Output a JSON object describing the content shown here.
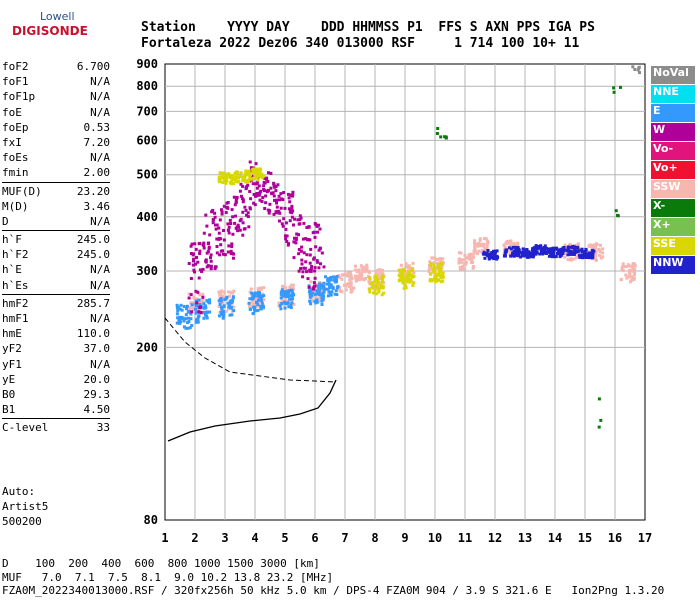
{
  "logo": {
    "top": "Lowell",
    "bottom": "DIGISONDE"
  },
  "header": {
    "line1": "Station    YYYY DAY    DDD HHMMSS P1  FFS S AXN PPS IGA PS",
    "line2": "Fortaleza 2022 Dez06 340 013000 RSF     1 714 100 10+ 11"
  },
  "params": [
    {
      "name": "foF2",
      "value": "6.700"
    },
    {
      "name": "foF1",
      "value": "N/A"
    },
    {
      "name": "foF1p",
      "value": "N/A"
    },
    {
      "name": "foE",
      "value": "N/A"
    },
    {
      "name": "foEp",
      "value": "0.53"
    },
    {
      "name": "fxI",
      "value": "7.20"
    },
    {
      "name": "foEs",
      "value": "N/A"
    },
    {
      "name": "fmin",
      "value": "2.00"
    },
    {
      "name": "MUF(D)",
      "value": "23.20"
    },
    {
      "name": "M(D)",
      "value": "3.46"
    },
    {
      "name": "D",
      "value": "N/A"
    },
    {
      "name": "h`F",
      "value": "245.0"
    },
    {
      "name": "h`F2",
      "value": "245.0"
    },
    {
      "name": "h`E",
      "value": "N/A"
    },
    {
      "name": "h`Es",
      "value": "N/A"
    },
    {
      "name": "hmF2",
      "value": "285.7"
    },
    {
      "name": "hmF1",
      "value": "N/A"
    },
    {
      "name": "hmE",
      "value": "110.0"
    },
    {
      "name": "yF2",
      "value": "37.0"
    },
    {
      "name": "yF1",
      "value": "N/A"
    },
    {
      "name": "yE",
      "value": "20.0"
    },
    {
      "name": "B0",
      "value": "29.3"
    },
    {
      "name": "B1",
      "value": "4.50"
    },
    {
      "name": "C-level",
      "value": "33"
    }
  ],
  "auto": {
    "line1": "Auto:",
    "line2": "Artist5",
    "line3": "500200"
  },
  "footer": {
    "line1": "D    100  200  400  600  800 1000 1500 3000 [km]",
    "line2": "MUF   7.0  7.1  7.5  8.1  9.0 10.2 13.8 23.2 [MHz]",
    "line3": "FZA0M_2022340013000.RSF / 320fx256h 50 kHz 5.0 km / DPS-4 FZA0M 904 / 3.9 S 321.6 E   Ion2Png 1.3.20"
  },
  "legend": [
    {
      "label": "NoVal",
      "color": "#8c8c8c"
    },
    {
      "label": "NNE",
      "color": "#00e0f0"
    },
    {
      "label": "E",
      "color": "#3399ff"
    },
    {
      "label": "W",
      "color": "#b0009a"
    },
    {
      "label": "Vo-",
      "color": "#e0147c"
    },
    {
      "label": "Vo+",
      "color": "#f01030"
    },
    {
      "label": "SSW",
      "color": "#f7b6b0"
    },
    {
      "label": "X-",
      "color": "#0a7a0a"
    },
    {
      "label": "X+",
      "color": "#78c050"
    },
    {
      "label": "SSE",
      "color": "#d8d800"
    },
    {
      "label": "NNW",
      "color": "#2222cc"
    }
  ],
  "chart_data": {
    "type": "scatter",
    "title": "",
    "xlabel": "",
    "ylabel": "",
    "xlim": [
      1,
      17
    ],
    "ylim": [
      80,
      900
    ],
    "y_scale": "log",
    "x_ticks": [
      1,
      2,
      3,
      4,
      5,
      6,
      7,
      8,
      9,
      10,
      11,
      12,
      13,
      14,
      15,
      16,
      17
    ],
    "y_ticks": [
      80,
      200,
      300,
      400,
      500,
      600,
      700,
      800,
      900
    ],
    "grid": true,
    "series": [
      {
        "name": "SSW",
        "points": [
          [
            2.0,
            255
          ],
          [
            3.0,
            258
          ],
          [
            4.0,
            262
          ],
          [
            5.0,
            266
          ],
          [
            6.0,
            272
          ],
          [
            7.0,
            285
          ],
          [
            7.5,
            300
          ],
          [
            8.0,
            290
          ],
          [
            9.0,
            300
          ],
          [
            10.0,
            310
          ],
          [
            11.0,
            320
          ],
          [
            11.5,
            345
          ],
          [
            12.5,
            340
          ],
          [
            14.5,
            335
          ],
          [
            15.3,
            335
          ],
          [
            16.4,
            300
          ]
        ]
      },
      {
        "name": "E",
        "points": [
          [
            1.6,
            238
          ],
          [
            2.2,
            245
          ],
          [
            3.0,
            250
          ],
          [
            4.0,
            255
          ],
          [
            5.0,
            260
          ],
          [
            6.0,
            268
          ],
          [
            6.5,
            280
          ]
        ]
      },
      {
        "name": "W",
        "points": [
          [
            2.0,
            300
          ],
          [
            2.5,
            360
          ],
          [
            3.0,
            380
          ],
          [
            3.5,
            420
          ],
          [
            4.0,
            480
          ],
          [
            4.5,
            450
          ],
          [
            5.0,
            400
          ],
          [
            5.5,
            350
          ],
          [
            6.0,
            330
          ]
        ]
      },
      {
        "name": "NNW",
        "points": [
          [
            11.8,
            330
          ],
          [
            12.5,
            335
          ],
          [
            13.0,
            333
          ],
          [
            13.5,
            338
          ],
          [
            14.0,
            334
          ],
          [
            14.5,
            337
          ],
          [
            15.0,
            332
          ]
        ]
      },
      {
        "name": "SSE",
        "points": [
          [
            3.0,
            495
          ],
          [
            3.5,
            500
          ],
          [
            4.0,
            505
          ],
          [
            8.0,
            280
          ],
          [
            9.0,
            290
          ],
          [
            10.0,
            300
          ]
        ]
      },
      {
        "name": "X-",
        "points": [
          [
            10.1,
            630
          ],
          [
            10.3,
            605
          ],
          [
            16.1,
            790
          ],
          [
            16.2,
            415
          ],
          [
            15.5,
            140
          ]
        ]
      },
      {
        "name": "NoVal",
        "points": [
          [
            16.6,
            880
          ],
          [
            16.6,
            875
          ]
        ]
      }
    ]
  }
}
